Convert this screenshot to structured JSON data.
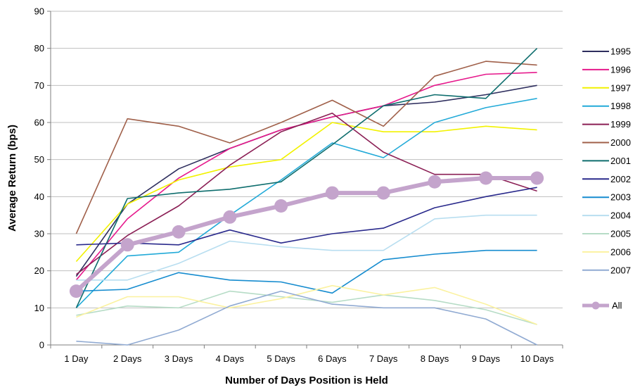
{
  "chart_data": {
    "type": "line",
    "title": "",
    "xlabel": "Number of Days Position is Held",
    "ylabel": "Average Return (bps)",
    "ylim": [
      0,
      90
    ],
    "yticks": [
      0,
      10,
      20,
      30,
      40,
      50,
      60,
      70,
      80,
      90
    ],
    "categories": [
      "1 Day",
      "2 Days",
      "3 Days",
      "4 Days",
      "5 Days",
      "6 Days",
      "7 Days",
      "8 Days",
      "9 Days",
      "10 Days"
    ],
    "grid": "horizontal",
    "legend": "right",
    "series": [
      {
        "name": "1995",
        "color": "#2e2e5e",
        "values": [
          18.5,
          38.0,
          47.5,
          53.0,
          58.0,
          61.5,
          64.5,
          65.5,
          67.5,
          70.0
        ]
      },
      {
        "name": "1996",
        "color": "#e6198c",
        "values": [
          17.5,
          34.0,
          45.0,
          53.0,
          58.0,
          61.5,
          64.5,
          70.0,
          73.0,
          73.5
        ]
      },
      {
        "name": "1997",
        "color": "#f2f200",
        "values": [
          22.5,
          38.0,
          44.5,
          48.0,
          50.0,
          60.0,
          57.5,
          57.5,
          59.0,
          58.0
        ]
      },
      {
        "name": "1998",
        "color": "#22aad8",
        "values": [
          10.0,
          24.0,
          25.0,
          35.0,
          44.5,
          54.5,
          50.5,
          60.0,
          64.0,
          66.5
        ]
      },
      {
        "name": "1999",
        "color": "#8b1f55",
        "values": [
          19.0,
          29.5,
          37.5,
          48.5,
          57.5,
          62.5,
          52.0,
          46.0,
          46.0,
          41.5
        ]
      },
      {
        "name": "2000",
        "color": "#a0604a",
        "values": [
          30.0,
          61.0,
          59.0,
          54.5,
          60.0,
          66.0,
          59.0,
          72.5,
          76.5,
          75.5
        ]
      },
      {
        "name": "2001",
        "color": "#0f6e6e",
        "values": [
          10.0,
          39.5,
          41.0,
          42.0,
          44.0,
          54.0,
          64.5,
          67.5,
          66.5,
          80.0
        ]
      },
      {
        "name": "2002",
        "color": "#2a2a8c",
        "values": [
          27.0,
          27.5,
          27.0,
          31.0,
          27.5,
          30.0,
          31.5,
          37.0,
          40.0,
          42.5
        ]
      },
      {
        "name": "2003",
        "color": "#168ccf",
        "values": [
          14.5,
          15.0,
          19.5,
          17.5,
          17.0,
          14.0,
          23.0,
          24.5,
          25.5,
          25.5
        ]
      },
      {
        "name": "2004",
        "color": "#b8def0",
        "values": [
          17.5,
          17.5,
          22.0,
          28.0,
          26.5,
          25.5,
          25.5,
          34.0,
          35.0,
          35.0
        ]
      },
      {
        "name": "2005",
        "color": "#b6dcc6",
        "values": [
          8.0,
          10.5,
          10.0,
          14.5,
          13.0,
          11.5,
          13.5,
          12.0,
          9.5,
          5.5
        ]
      },
      {
        "name": "2006",
        "color": "#fbf2a0",
        "values": [
          7.5,
          13.0,
          13.0,
          10.0,
          12.5,
          16.0,
          13.5,
          15.5,
          11.0,
          5.5
        ]
      },
      {
        "name": "2007",
        "color": "#90aad2",
        "values": [
          1.0,
          0.0,
          4.0,
          10.5,
          14.5,
          11.0,
          10.0,
          10.0,
          7.0,
          0.0
        ]
      },
      {
        "name": "All",
        "color": "#c4a4cc",
        "values": [
          14.5,
          27.0,
          30.5,
          34.5,
          37.5,
          41.0,
          41.0,
          44.0,
          45.0,
          45.0
        ],
        "emphasis": true
      }
    ]
  }
}
